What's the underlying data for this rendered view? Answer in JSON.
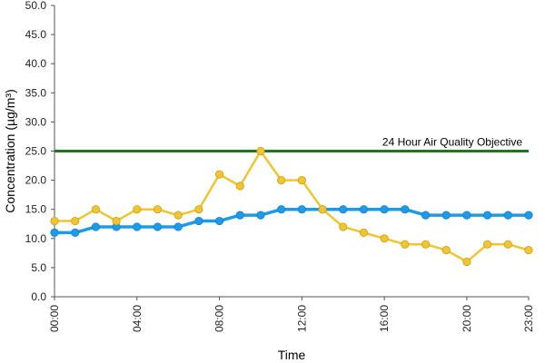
{
  "chart_data": {
    "type": "line",
    "title": "",
    "xlabel": "Time",
    "ylabel": "Concentration (µg/m³)",
    "ylim": [
      0,
      50
    ],
    "y_ticks": [
      "0.0",
      "5.0",
      "10.0",
      "15.0",
      "20.0",
      "25.0",
      "30.0",
      "35.0",
      "40.0",
      "45.0",
      "50.0"
    ],
    "y_tick_values": [
      0,
      5,
      10,
      15,
      20,
      25,
      30,
      35,
      40,
      45,
      50
    ],
    "x_tick_labels": [
      "00:00",
      "04:00",
      "08:00",
      "12:00",
      "16:00",
      "20:00",
      "23:00"
    ],
    "x_tick_hours": [
      0,
      4,
      8,
      12,
      16,
      20,
      23
    ],
    "x_hours": [
      0,
      1,
      2,
      3,
      4,
      5,
      6,
      7,
      8,
      9,
      10,
      11,
      12,
      13,
      14,
      15,
      16,
      17,
      18,
      19,
      20,
      21,
      22,
      23
    ],
    "grid": false,
    "series": [
      {
        "color": "#1e9be8",
        "values": [
          11,
          11,
          12,
          12,
          12,
          12,
          12,
          13,
          13,
          14,
          14,
          15,
          15,
          15,
          15,
          15,
          15,
          15,
          14,
          14,
          14,
          14,
          14,
          14
        ]
      },
      {
        "color": "#f0c530",
        "values": [
          13,
          13,
          15,
          13,
          15,
          15,
          14,
          15,
          21,
          19,
          25,
          20,
          20,
          15,
          12,
          11,
          10,
          9,
          9,
          8,
          6,
          9,
          9,
          8
        ]
      }
    ],
    "reference_line": {
      "label": "24 Hour Air Quality Objective",
      "value": 25,
      "color": "#1a7a1a"
    }
  }
}
